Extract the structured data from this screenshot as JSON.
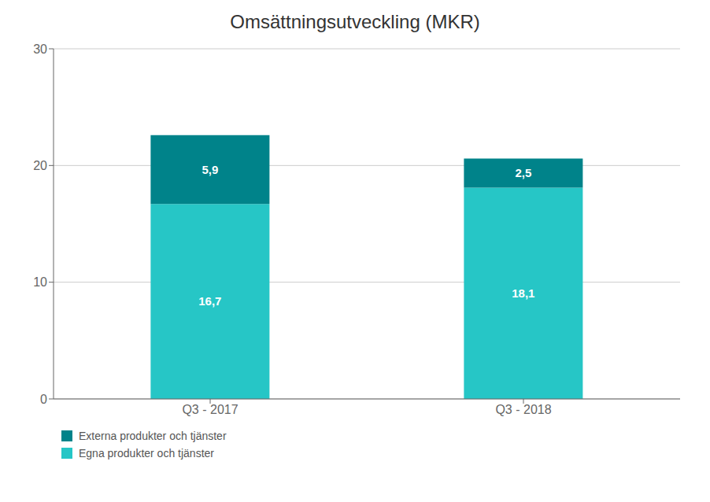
{
  "chart_data": {
    "type": "bar",
    "title": "Omsättningsutveckling (MKR)",
    "categories": [
      "Q3 - 2017",
      "Q3 - 2018"
    ],
    "series": [
      {
        "name": "Egna produkter och tjänster",
        "color": "#26C6C6",
        "values": [
          16.7,
          18.1
        ],
        "value_labels": [
          "16,7",
          "18,1"
        ]
      },
      {
        "name": "Externa produkter och tjänster",
        "color": "#00838A",
        "values": [
          5.9,
          2.5
        ],
        "value_labels": [
          "5,9",
          "2,5"
        ]
      }
    ],
    "stacked": true,
    "data_labels": true,
    "ylim": [
      0,
      30
    ],
    "yticks": [
      0,
      10,
      20,
      30
    ],
    "grid": true,
    "legend": "lower left"
  }
}
